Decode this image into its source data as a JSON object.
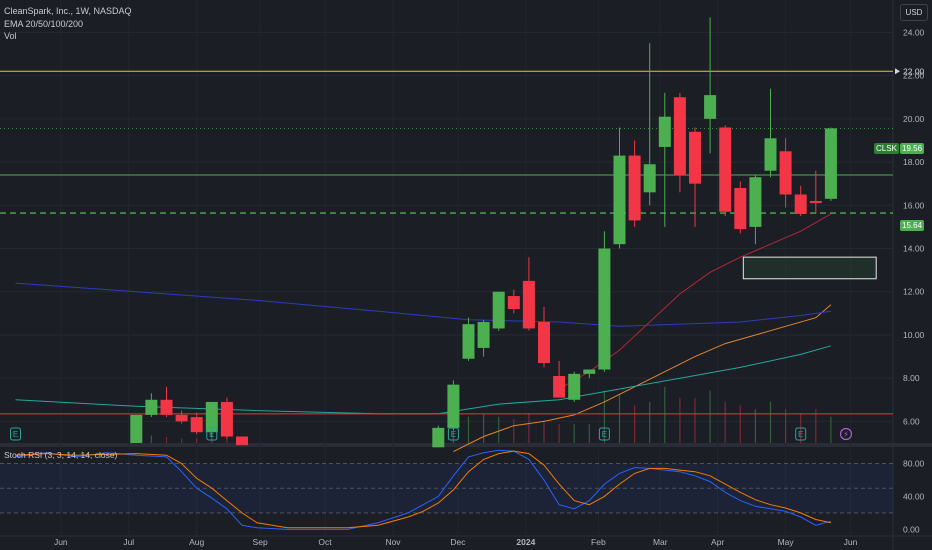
{
  "header": {
    "symbol_line": "CleanSpark, Inc., 1W, NASDAQ",
    "ema_label": "EMA 20/50/100/200",
    "vol_label": "Vol",
    "currency": "USD"
  },
  "colors": {
    "background": "#1c1e26",
    "up": "#4caf50",
    "down": "#f23645",
    "ema20": "#b22833",
    "ema50": "#e0852b",
    "ema100": "#26a69a",
    "ema200": "#2b3dbb",
    "stoch_k": "#2962ff",
    "stoch_d": "#f57c00",
    "resistance": "#e8c23a",
    "support_solid": "#4caf50",
    "support_dashed": "#4caf50",
    "low_line": "#e03b3b",
    "zone": "#ffffff"
  },
  "chart_data": {
    "type": "candlestick",
    "title": "CleanSpark, Inc., 1W, NASDAQ",
    "ylim": [
      5.0,
      25.5
    ],
    "y_ticks": [
      6,
      8,
      10,
      12,
      14,
      16,
      18,
      20,
      22,
      24
    ],
    "y_tick_labels": [
      "6.00",
      "8.00",
      "10.00",
      "12.00",
      "14.00",
      "16.00",
      "18.00",
      "20.00",
      "22.00",
      "24.00"
    ],
    "x_labels": [
      {
        "w": 3,
        "label": "Jun"
      },
      {
        "w": 7.5,
        "label": "Jul"
      },
      {
        "w": 12,
        "label": "Aug"
      },
      {
        "w": 16.2,
        "label": "Sep"
      },
      {
        "w": 20.5,
        "label": "Oct"
      },
      {
        "w": 25,
        "label": "Nov"
      },
      {
        "w": 29.3,
        "label": "Dec"
      },
      {
        "w": 33.8,
        "label": "2024"
      },
      {
        "w": 38.6,
        "label": "Feb"
      },
      {
        "w": 42.7,
        "label": "Mar"
      },
      {
        "w": 46.5,
        "label": "Apr"
      },
      {
        "w": 51,
        "label": "May"
      },
      {
        "w": 55.3,
        "label": "Jun"
      }
    ],
    "candles": [
      {
        "w": 8,
        "o": 5.0,
        "h": 6.3,
        "l": 5.0,
        "c": 6.3
      },
      {
        "w": 9,
        "o": 6.3,
        "h": 7.3,
        "l": 6.2,
        "c": 7.0
      },
      {
        "w": 10,
        "o": 7.0,
        "h": 7.6,
        "l": 6.2,
        "c": 6.3
      },
      {
        "w": 11,
        "o": 6.3,
        "h": 6.5,
        "l": 5.9,
        "c": 6.0
      },
      {
        "w": 12,
        "o": 6.2,
        "h": 6.4,
        "l": 5.4,
        "c": 5.5
      },
      {
        "w": 13,
        "o": 5.5,
        "h": 6.9,
        "l": 5.3,
        "c": 6.9
      },
      {
        "w": 14,
        "o": 6.9,
        "h": 7.1,
        "l": 5.2,
        "c": 5.3
      },
      {
        "w": 15,
        "o": 5.3,
        "h": 5.3,
        "l": 4.9,
        "c": 4.9
      },
      {
        "w": 28,
        "o": 4.8,
        "h": 5.8,
        "l": 4.8,
        "c": 5.7
      },
      {
        "w": 29,
        "o": 5.7,
        "h": 7.9,
        "l": 5.6,
        "c": 7.7
      },
      {
        "w": 30,
        "o": 8.9,
        "h": 10.8,
        "l": 8.8,
        "c": 10.5
      },
      {
        "w": 31,
        "o": 9.4,
        "h": 10.7,
        "l": 9.0,
        "c": 10.6
      },
      {
        "w": 32,
        "o": 10.3,
        "h": 12.0,
        "l": 10.2,
        "c": 12.0
      },
      {
        "w": 33,
        "o": 11.8,
        "h": 12.1,
        "l": 11.0,
        "c": 11.2
      },
      {
        "w": 34,
        "o": 12.5,
        "h": 13.6,
        "l": 10.2,
        "c": 10.3
      },
      {
        "w": 35,
        "o": 10.6,
        "h": 11.3,
        "l": 8.5,
        "c": 8.7
      },
      {
        "w": 36,
        "o": 8.1,
        "h": 8.8,
        "l": 7.1,
        "c": 7.1
      },
      {
        "w": 37,
        "o": 7.0,
        "h": 8.3,
        "l": 6.9,
        "c": 8.2
      },
      {
        "w": 38,
        "o": 8.2,
        "h": 8.4,
        "l": 8.0,
        "c": 8.4
      },
      {
        "w": 39,
        "o": 8.4,
        "h": 14.8,
        "l": 8.3,
        "c": 14.0
      },
      {
        "w": 40,
        "o": 14.2,
        "h": 19.6,
        "l": 14.0,
        "c": 18.3
      },
      {
        "w": 41,
        "o": 18.3,
        "h": 19.0,
        "l": 15.0,
        "c": 15.3
      },
      {
        "w": 42,
        "o": 16.6,
        "h": 23.5,
        "l": 16.0,
        "c": 17.9
      },
      {
        "w": 43,
        "o": 18.7,
        "h": 21.2,
        "l": 15.0,
        "c": 20.1
      },
      {
        "w": 44,
        "o": 21.0,
        "h": 21.2,
        "l": 16.6,
        "c": 17.4
      },
      {
        "w": 45,
        "o": 19.4,
        "h": 19.6,
        "l": 15.0,
        "c": 17.0
      },
      {
        "w": 46,
        "o": 20.0,
        "h": 24.7,
        "l": 18.4,
        "c": 21.1
      },
      {
        "w": 47,
        "o": 19.6,
        "h": 19.7,
        "l": 15.5,
        "c": 15.7
      },
      {
        "w": 48,
        "o": 16.8,
        "h": 17.1,
        "l": 14.7,
        "c": 14.9
      },
      {
        "w": 49,
        "o": 15.0,
        "h": 17.4,
        "l": 14.2,
        "c": 17.3
      },
      {
        "w": 50,
        "o": 17.6,
        "h": 21.4,
        "l": 17.3,
        "c": 19.1
      },
      {
        "w": 51,
        "o": 18.5,
        "h": 19.1,
        "l": 15.9,
        "c": 16.5
      },
      {
        "w": 52,
        "o": 16.5,
        "h": 16.9,
        "l": 15.5,
        "c": 15.6
      },
      {
        "w": 53,
        "o": 16.2,
        "h": 17.6,
        "l": 15.6,
        "c": 16.1
      },
      {
        "w": 54,
        "o": 16.3,
        "h": 19.6,
        "l": 16.2,
        "c": 19.56
      }
    ],
    "ema": [
      {
        "name": "EMA 20",
        "color": "#b22833",
        "points": [
          [
            36,
            7.5
          ],
          [
            38,
            8.3
          ],
          [
            40,
            9.3
          ],
          [
            42,
            10.6
          ],
          [
            44,
            11.9
          ],
          [
            46,
            12.9
          ],
          [
            48,
            13.6
          ],
          [
            50,
            14.2
          ],
          [
            52,
            14.8
          ],
          [
            54,
            15.6
          ]
        ]
      },
      {
        "name": "EMA 50",
        "color": "#e0852b",
        "points": [
          [
            29,
            4.6
          ],
          [
            31,
            5.3
          ],
          [
            33,
            5.8
          ],
          [
            35,
            6.0
          ],
          [
            37,
            6.3
          ],
          [
            39,
            6.9
          ],
          [
            41,
            7.6
          ],
          [
            43,
            8.3
          ],
          [
            45,
            9.0
          ],
          [
            47,
            9.6
          ],
          [
            49,
            10.0
          ],
          [
            51,
            10.4
          ],
          [
            53,
            10.8
          ],
          [
            54,
            11.4
          ]
        ]
      },
      {
        "name": "EMA 100",
        "color": "#26a69a",
        "points": [
          [
            0,
            7.0
          ],
          [
            8,
            6.7
          ],
          [
            16,
            6.5
          ],
          [
            24,
            6.35
          ],
          [
            28,
            6.35
          ],
          [
            32,
            6.8
          ],
          [
            36,
            7.0
          ],
          [
            40,
            7.5
          ],
          [
            44,
            8.0
          ],
          [
            48,
            8.5
          ],
          [
            52,
            9.1
          ],
          [
            54,
            9.5
          ]
        ]
      },
      {
        "name": "EMA 200",
        "color": "#2b3dbb",
        "points": [
          [
            0,
            12.4
          ],
          [
            8,
            12.0
          ],
          [
            16,
            11.6
          ],
          [
            24,
            11.1
          ],
          [
            30,
            10.7
          ],
          [
            36,
            10.6
          ],
          [
            40,
            10.4
          ],
          [
            44,
            10.5
          ],
          [
            48,
            10.6
          ],
          [
            52,
            10.9
          ],
          [
            54,
            11.1
          ]
        ]
      }
    ],
    "levels": [
      {
        "name": "resistance",
        "value": 22.2,
        "style": "solid",
        "color": "#e8c23a"
      },
      {
        "name": "support-upper",
        "value": 17.4,
        "style": "solid",
        "color": "#4caf50"
      },
      {
        "name": "support-dashed",
        "value": 15.64,
        "style": "dashed",
        "color": "#4caf50"
      },
      {
        "name": "low-line",
        "value": 6.35,
        "style": "solid",
        "color": "#e03b3b"
      }
    ],
    "zone": {
      "x_from": 48.2,
      "x_to": 57,
      "y_low": 12.6,
      "y_high": 13.6
    },
    "price_labels": {
      "ticker": "CLSK",
      "last": "19.56",
      "level": "15.64"
    },
    "volume_relative": [
      0.05,
      0.1,
      0.08,
      0.06,
      0.06,
      0.1,
      0.08,
      0.05,
      0.18,
      0.25,
      0.35,
      0.38,
      0.35,
      0.32,
      0.4,
      0.3,
      0.25,
      0.25,
      0.25,
      0.7,
      0.65,
      0.5,
      0.55,
      0.75,
      0.6,
      0.6,
      0.7,
      0.55,
      0.5,
      0.45,
      0.55,
      0.45,
      0.4,
      0.45,
      0.35
    ],
    "events": [
      {
        "w": 0,
        "label": "E"
      },
      {
        "w": 13,
        "label": "E"
      },
      {
        "w": 29,
        "label": "E"
      },
      {
        "w": 39,
        "label": "E"
      },
      {
        "w": 52,
        "label": "E"
      },
      {
        "w": 55,
        "label": "⚡"
      }
    ],
    "stoch_rsi": {
      "label": "Stoch RSI (3, 3, 14, 14, close)",
      "ylim": [
        -8,
        100
      ],
      "levels": [
        80,
        50,
        20
      ],
      "ticks": [
        "80.00",
        "40.00",
        "0.00"
      ],
      "tick_values": [
        80,
        40,
        0
      ],
      "k": [
        [
          0,
          88
        ],
        [
          2,
          93
        ],
        [
          4,
          88
        ],
        [
          6,
          93
        ],
        [
          8,
          90
        ],
        [
          10,
          88
        ],
        [
          11,
          70
        ],
        [
          12,
          50
        ],
        [
          13,
          38
        ],
        [
          14,
          25
        ],
        [
          15,
          5
        ],
        [
          16,
          2
        ],
        [
          18,
          0
        ],
        [
          22,
          0
        ],
        [
          24,
          8
        ],
        [
          26,
          20
        ],
        [
          27,
          30
        ],
        [
          28,
          40
        ],
        [
          29,
          65
        ],
        [
          30,
          88
        ],
        [
          31,
          93
        ],
        [
          32,
          96
        ],
        [
          33,
          95
        ],
        [
          34,
          85
        ],
        [
          35,
          60
        ],
        [
          36,
          30
        ],
        [
          37,
          25
        ],
        [
          38,
          35
        ],
        [
          39,
          55
        ],
        [
          40,
          68
        ],
        [
          41,
          75
        ],
        [
          42,
          74
        ],
        [
          43,
          72
        ],
        [
          44,
          70
        ],
        [
          45,
          65
        ],
        [
          46,
          58
        ],
        [
          47,
          45
        ],
        [
          48,
          35
        ],
        [
          49,
          28
        ],
        [
          50,
          25
        ],
        [
          51,
          22
        ],
        [
          52,
          15
        ],
        [
          53,
          5
        ],
        [
          54,
          10
        ]
      ],
      "d": [
        [
          0,
          90
        ],
        [
          2,
          92
        ],
        [
          4,
          90
        ],
        [
          6,
          91
        ],
        [
          8,
          92
        ],
        [
          10,
          90
        ],
        [
          11,
          80
        ],
        [
          12,
          62
        ],
        [
          13,
          50
        ],
        [
          14,
          35
        ],
        [
          15,
          20
        ],
        [
          16,
          8
        ],
        [
          18,
          2
        ],
        [
          22,
          2
        ],
        [
          24,
          5
        ],
        [
          26,
          15
        ],
        [
          27,
          22
        ],
        [
          28,
          32
        ],
        [
          29,
          48
        ],
        [
          30,
          70
        ],
        [
          31,
          85
        ],
        [
          32,
          92
        ],
        [
          33,
          95
        ],
        [
          34,
          92
        ],
        [
          35,
          78
        ],
        [
          36,
          55
        ],
        [
          37,
          35
        ],
        [
          38,
          30
        ],
        [
          39,
          40
        ],
        [
          40,
          55
        ],
        [
          41,
          68
        ],
        [
          42,
          74
        ],
        [
          43,
          74
        ],
        [
          44,
          72
        ],
        [
          45,
          70
        ],
        [
          46,
          65
        ],
        [
          47,
          55
        ],
        [
          48,
          45
        ],
        [
          49,
          36
        ],
        [
          50,
          30
        ],
        [
          51,
          26
        ],
        [
          52,
          20
        ],
        [
          53,
          12
        ],
        [
          54,
          8
        ]
      ]
    }
  }
}
